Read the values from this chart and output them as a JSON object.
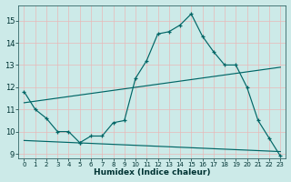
{
  "xlabel": "Humidex (Indice chaleur)",
  "ylabel": "",
  "bg_color": "#cceae8",
  "plot_bg_color": "#cceae8",
  "grid_color": "#e8b8b8",
  "line_color": "#006666",
  "xlim": [
    -0.5,
    23.5
  ],
  "ylim": [
    8.8,
    15.7
  ],
  "yticks": [
    9,
    10,
    11,
    12,
    13,
    14,
    15
  ],
  "xticks": [
    0,
    1,
    2,
    3,
    4,
    5,
    6,
    7,
    8,
    9,
    10,
    11,
    12,
    13,
    14,
    15,
    16,
    17,
    18,
    19,
    20,
    21,
    22,
    23
  ],
  "series": [
    {
      "x": [
        0,
        1,
        2,
        3,
        4,
        5
      ],
      "y": [
        11.8,
        11.0,
        10.6,
        10.0,
        10.0,
        9.5
      ]
    },
    {
      "x": [
        5,
        6,
        7,
        8,
        9,
        10,
        11,
        12,
        13,
        14,
        15,
        16,
        17,
        18,
        19,
        20,
        21,
        22,
        23
      ],
      "y": [
        9.5,
        9.8,
        9.8,
        10.4,
        10.5,
        12.4,
        13.2,
        14.4,
        14.5,
        14.8,
        15.3,
        14.3,
        13.6,
        13.0,
        13.0,
        12.0,
        10.5,
        9.7,
        8.9
      ]
    },
    {
      "x": [
        0,
        23
      ],
      "y": [
        11.3,
        12.9
      ]
    },
    {
      "x": [
        0,
        23
      ],
      "y": [
        9.6,
        9.1
      ]
    }
  ]
}
